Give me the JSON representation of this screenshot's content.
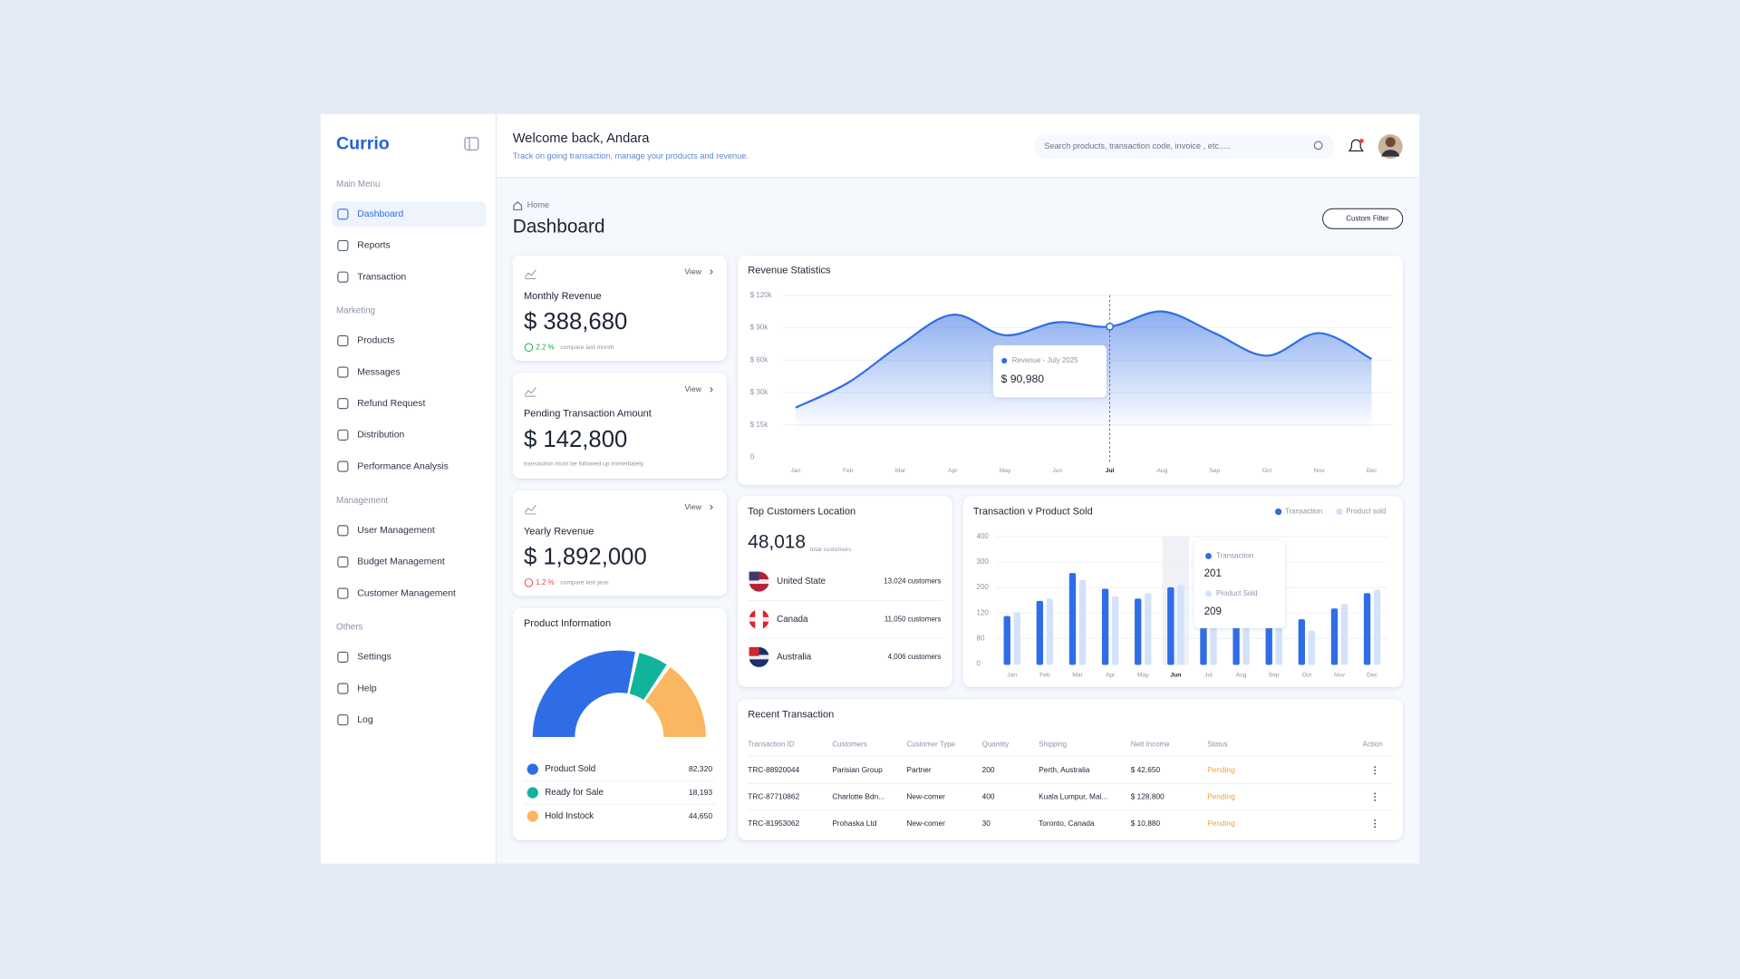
{
  "sidebar": {
    "brand": "Currio",
    "sections": [
      {
        "title": "Main Menu",
        "items": [
          "Dashboard",
          "Reports",
          "Transaction"
        ]
      },
      {
        "title": "Marketing",
        "items": [
          "Products",
          "Messages",
          "Refund Request",
          "Distribution",
          "Performance Analysis"
        ]
      },
      {
        "title": "Management",
        "items": [
          "User Management",
          "Budget Management",
          "Customer Management"
        ]
      },
      {
        "title": "Others",
        "items": [
          "Settings",
          "Help",
          "Log"
        ]
      }
    ]
  },
  "header": {
    "welcome": "Welcome back, Andara",
    "subtitle": "Track on going transaction, manage your products and revenue.",
    "search_placeholder": "Search products, transaction code, invoice , etc....."
  },
  "breadcrumb": "Home",
  "page_title": "Dashboard",
  "filter_button": "Custom Filter",
  "stat_cards": [
    {
      "link": "View",
      "title": "Monthly Revenue",
      "value": "$ 388,680",
      "change": "2.2 %",
      "change_color": "#22a344",
      "note": "compare last month"
    },
    {
      "link": "View",
      "title": "Pending Transaction Amount",
      "value": "$ 142,800",
      "note": "transaction must be followed up immediately"
    },
    {
      "link": "View",
      "title": "Yearly Revenue",
      "value": "$ 1,892,000",
      "change": "1.2 %",
      "change_color": "#e5484d",
      "note": "compare last year"
    }
  ],
  "customers": {
    "title": "Top Customers Location",
    "total": "48,018",
    "total_label": "total customers",
    "rows": [
      {
        "country": "United State",
        "count": "13,024 customers"
      },
      {
        "country": "Canada",
        "count": "11,050 customers"
      },
      {
        "country": "Australia",
        "count": "4,006 customers"
      }
    ]
  },
  "transactions": {
    "title": "Recent Transaction",
    "columns": [
      "Transaction ID",
      "Customers",
      "Customer Type",
      "Quantity",
      "Shipping",
      "Nett Income",
      "Status",
      "Action"
    ],
    "rows": [
      [
        "TRC-88920044",
        "Parisian Group",
        "Partner",
        "200",
        "Perth, Australia",
        "$  42,650",
        "Pending"
      ],
      [
        "TRC-87710862",
        "Charlotte Bdn...",
        "New-comer",
        "400",
        "Kuala Lumpur, Mal...",
        "$  128,800",
        "Pending"
      ],
      [
        "TRC-81953062",
        "Prohaska Ltd",
        "New-comer",
        "30",
        "Toronto, Canada",
        "$  10,880",
        "Pending"
      ]
    ]
  },
  "chart_data": [
    {
      "type": "area",
      "title": "Revenue Statistics",
      "color": "#2f6de6",
      "categories": [
        "Jan",
        "Feb",
        "Mar",
        "Apr",
        "May",
        "Jun",
        "Jul",
        "Aug",
        "Sep",
        "Oct",
        "Nov",
        "Dec"
      ],
      "values": [
        23000,
        39000,
        74000,
        102000,
        83000,
        95000,
        90980,
        105000,
        85000,
        64000,
        85000,
        61000
      ],
      "value_labels": [
        null,
        null,
        null,
        null,
        null,
        null,
        "$ 90,980",
        null,
        null,
        null,
        null,
        null
      ],
      "highlight": 6,
      "tooltip_title": "Revenue - July 2025",
      "ylim": [
        0,
        120000
      ],
      "yticks": [
        0,
        {
          "value": 15000,
          "label": "$ 15k"
        },
        {
          "value": 30000,
          "label": "$ 30k"
        },
        {
          "value": 60000,
          "label": "$ 60k"
        },
        {
          "value": 90000,
          "label": "$ 90k"
        },
        {
          "value": 120000,
          "label": "$ 120k"
        }
      ],
      "grid": true
    },
    {
      "type": "bar",
      "title": "Transaction v Product Sold",
      "categories": [
        "Jan",
        "Feb",
        "Mar",
        "Apr",
        "May",
        "Jun",
        "Jul",
        "Aug",
        "Sep",
        "Oct",
        "Nov",
        "Dec"
      ],
      "series": [
        {
          "name": "Transaction",
          "color": "#2f6de6",
          "values": [
            115,
            158,
            257,
            196,
            165,
            201,
            150,
            130,
            150,
            110,
            134,
            182
          ]
        },
        {
          "name": "Product sold",
          "color": "#d3e2fb",
          "values": [
            122,
            165,
            230,
            172,
            182,
            209,
            140,
            160,
            180,
            92,
            148,
            193
          ]
        }
      ],
      "highlight": 5,
      "tooltip_names": [
        "Transaction",
        "Product Sold"
      ],
      "ylim": [
        0,
        400
      ],
      "yticks": [
        0,
        80,
        120,
        200,
        300,
        400
      ],
      "grid": true,
      "legend": "top-right"
    },
    {
      "type": "pie",
      "title": "Product Information",
      "categories": [
        "Product Sold",
        "Ready for Sale",
        "Hold Instock"
      ],
      "values": [
        82320,
        18193,
        44650
      ],
      "value_labels": [
        "82,320",
        "18,193",
        "44,650"
      ],
      "colors": [
        "#2f6de6",
        "#12b39b",
        "#fbb661"
      ]
    }
  ]
}
